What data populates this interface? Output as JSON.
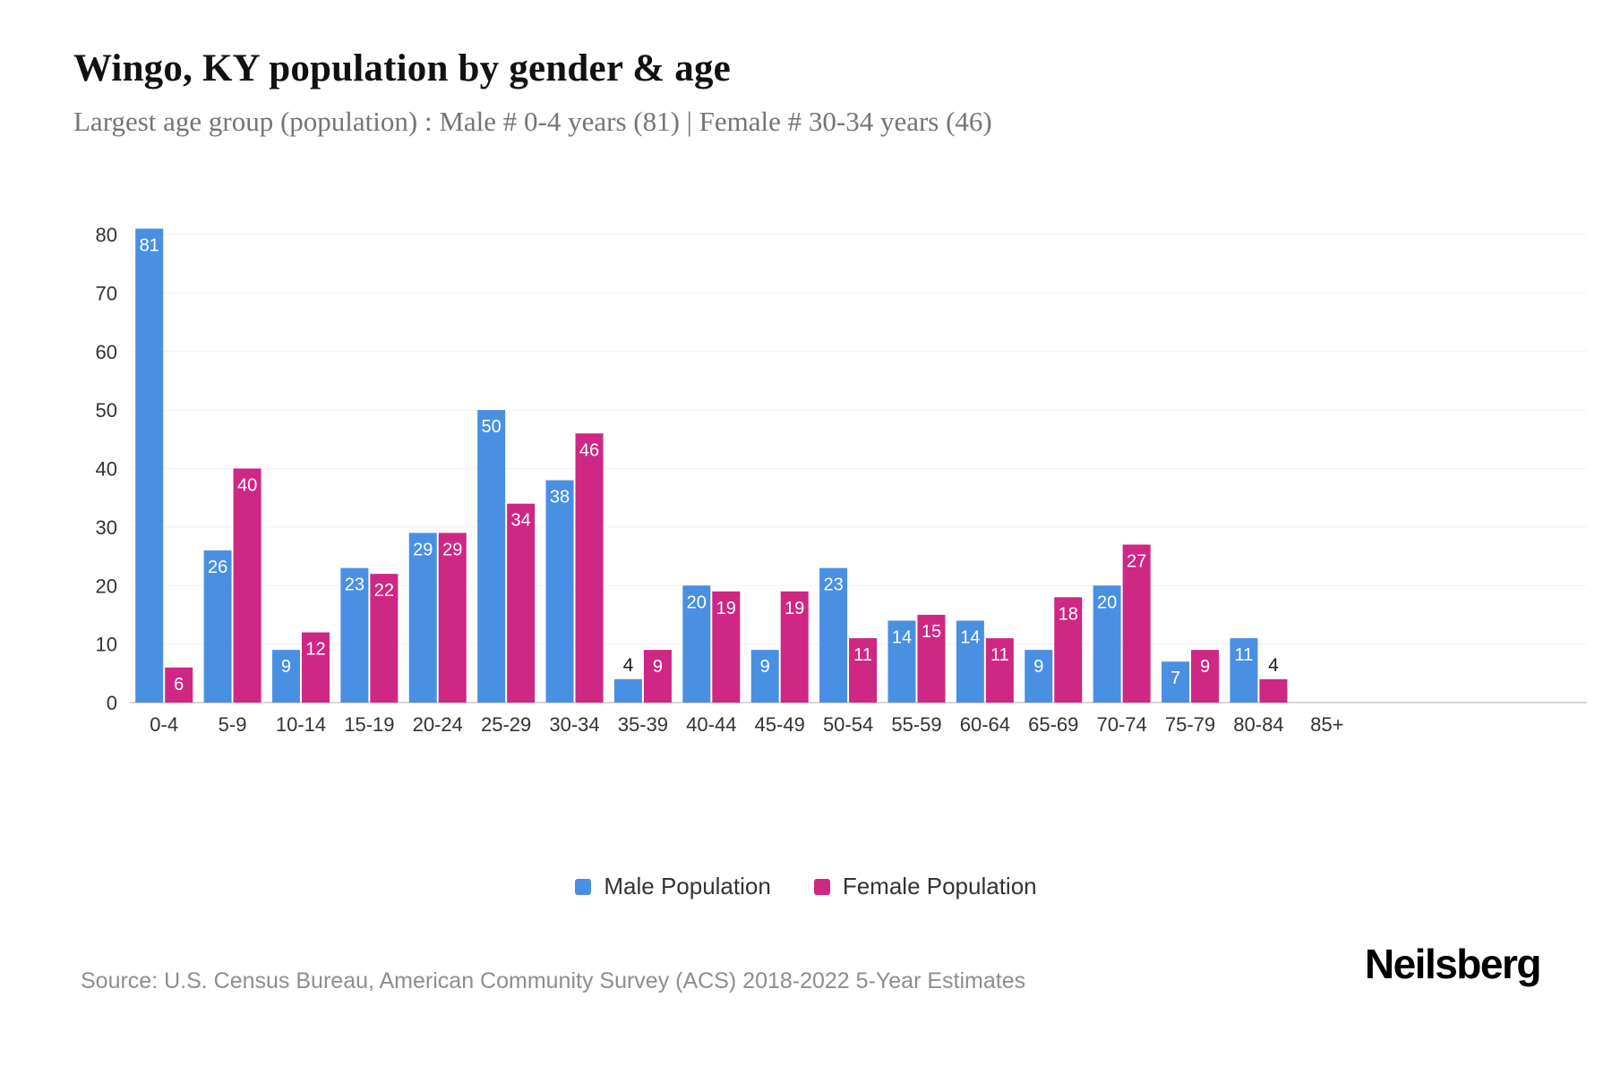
{
  "title": "Wingo, KY population by gender & age",
  "subtitle": "Largest age group (population) : Male # 0-4 years (81) | Female # 30-34 years (46)",
  "source": "Source: U.S. Census Bureau, American Community Survey (ACS) 2018-2022 5-Year Estimates",
  "brand": "Neilsberg",
  "legend": {
    "male": "Male Population",
    "female": "Female Population"
  },
  "colors": {
    "male": "#4a90e2",
    "female": "#ce2784",
    "grid": "#f2f2f2",
    "axis_line": "#c8c8c8",
    "tick": "#333333",
    "label_inside": "#ffffff",
    "label_above": "#1a1a1a"
  },
  "chart_data": {
    "type": "bar",
    "title": "Wingo, KY population by gender & age",
    "categories": [
      "0-4",
      "5-9",
      "10-14",
      "15-19",
      "20-24",
      "25-29",
      "30-34",
      "35-39",
      "40-44",
      "45-49",
      "50-54",
      "55-59",
      "60-64",
      "65-69",
      "70-74",
      "75-79",
      "80-84",
      "85+"
    ],
    "series": [
      {
        "name": "Male Population",
        "values": [
          81,
          26,
          9,
          23,
          29,
          50,
          38,
          4,
          20,
          9,
          23,
          14,
          14,
          9,
          20,
          7,
          11,
          0
        ]
      },
      {
        "name": "Female Population",
        "values": [
          6,
          40,
          12,
          22,
          29,
          34,
          46,
          9,
          19,
          19,
          11,
          15,
          11,
          18,
          27,
          9,
          4,
          0
        ]
      }
    ],
    "xlabel": "",
    "ylabel": "",
    "ylim": [
      0,
      80
    ],
    "yticks": [
      0,
      10,
      20,
      30,
      40,
      50,
      60,
      70,
      80
    ],
    "grid": true,
    "legend_position": "bottom"
  }
}
